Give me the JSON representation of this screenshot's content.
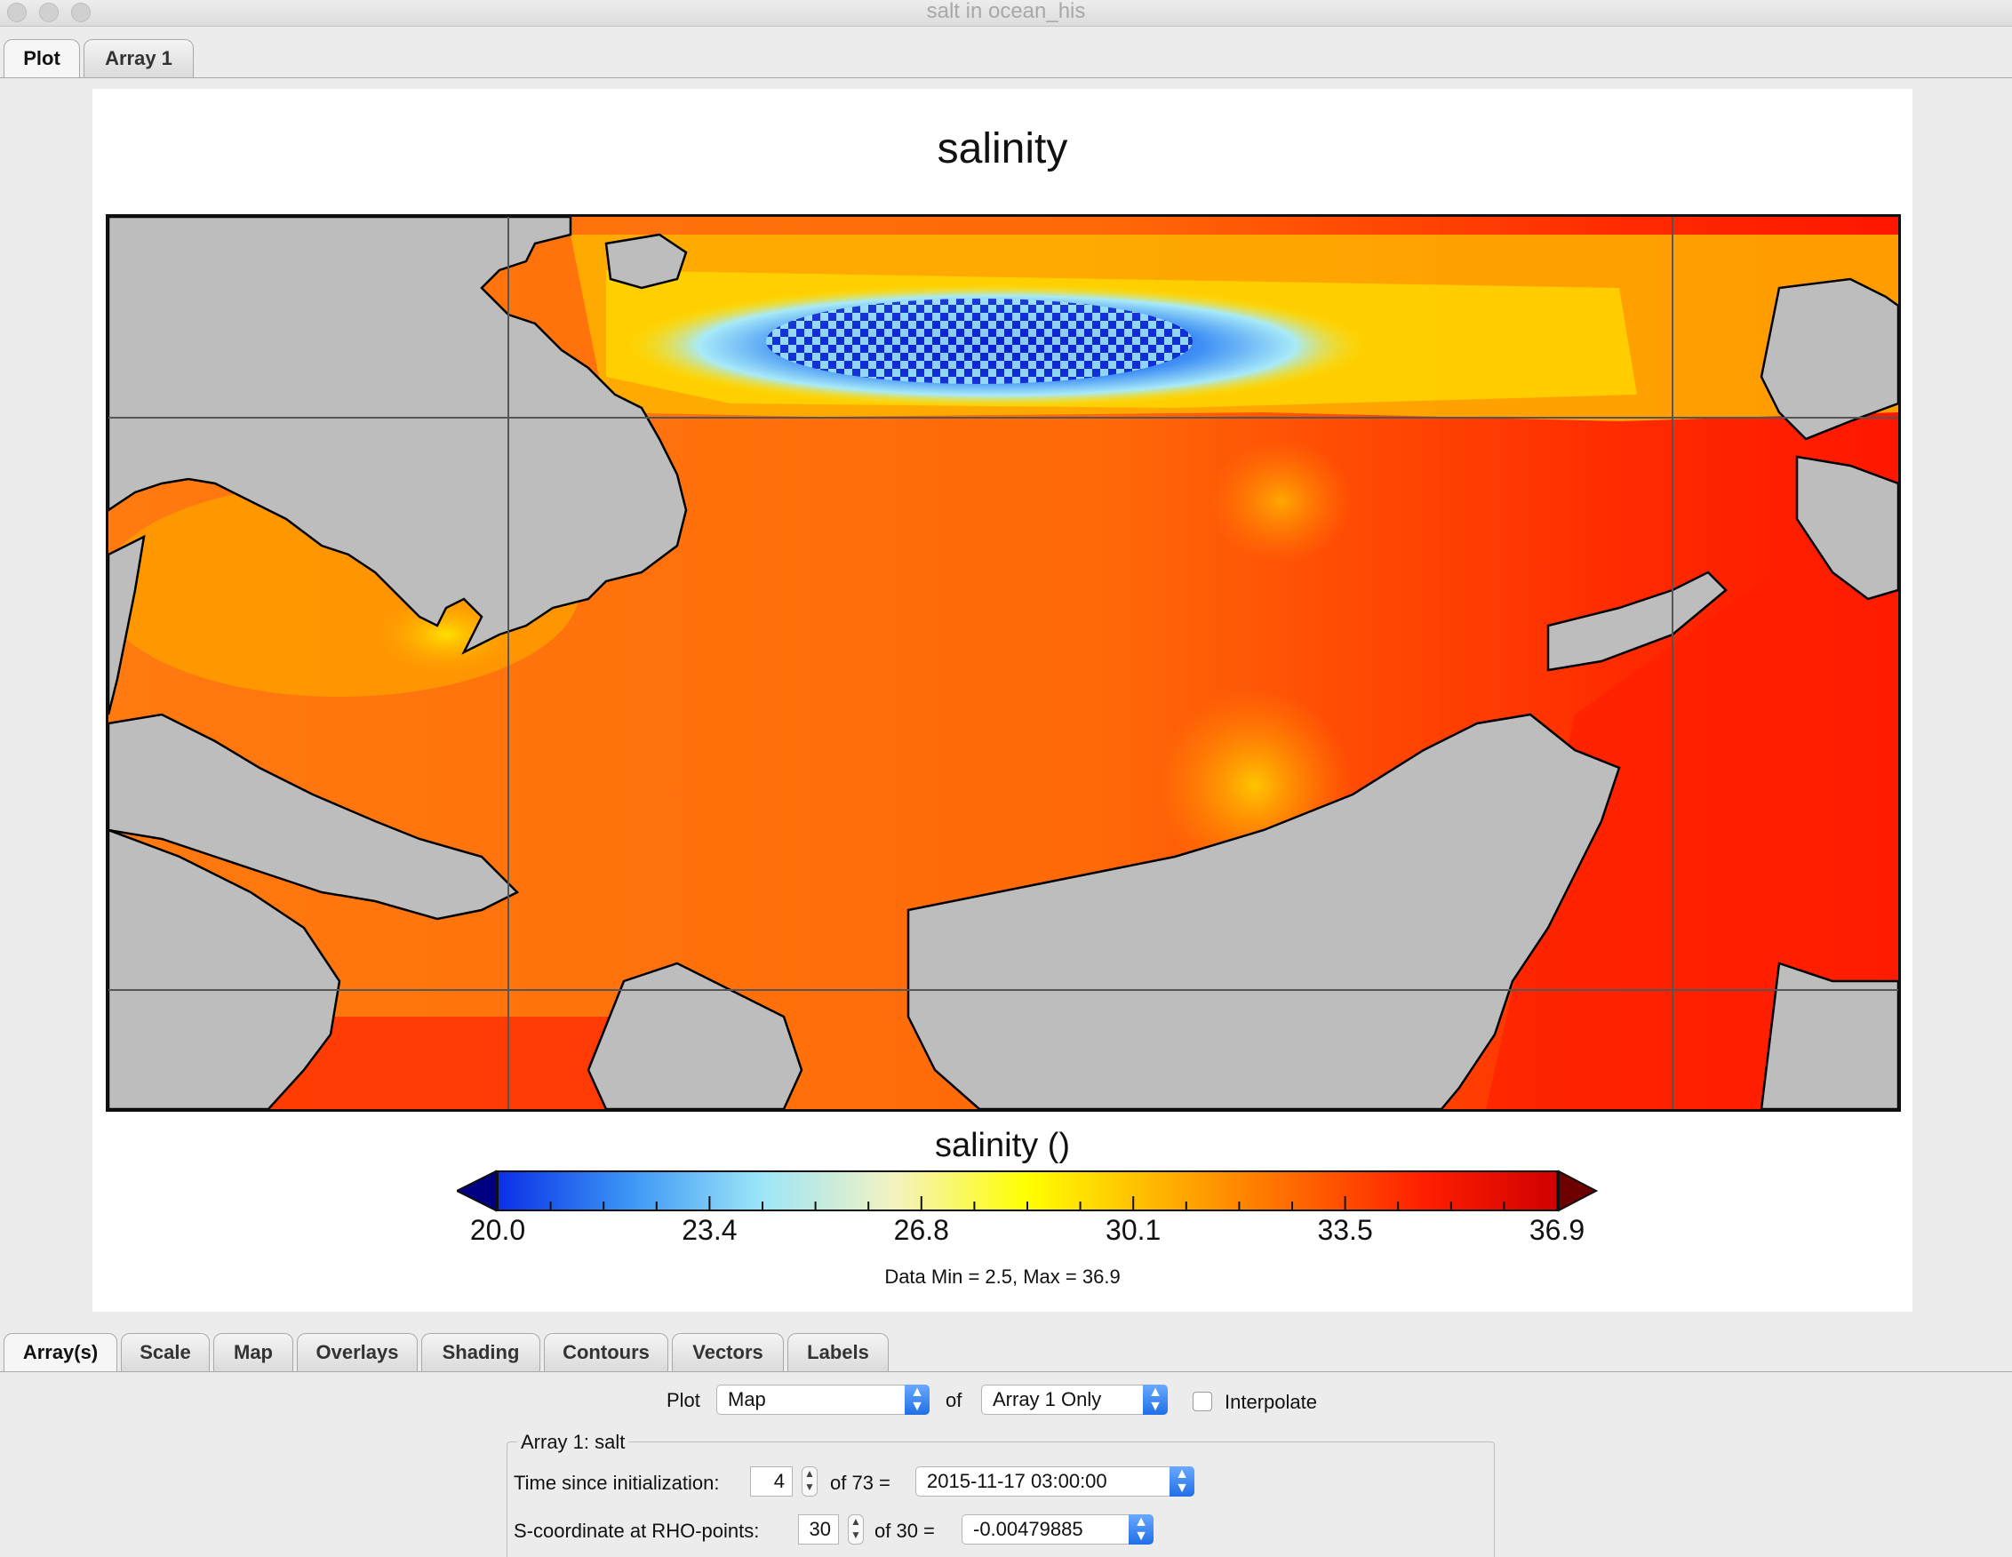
{
  "window": {
    "title": "salt in ocean_his"
  },
  "top_tabs": [
    {
      "label": "Plot",
      "active": true
    },
    {
      "label": "Array 1",
      "active": false
    }
  ],
  "plot": {
    "title": "salinity",
    "colorbar": {
      "title": "salinity ()",
      "tick_labels": [
        "20.0",
        "23.4",
        "26.8",
        "30.1",
        "33.5",
        "36.9"
      ],
      "range": [
        20.0,
        36.9
      ],
      "colors": [
        "#000080",
        "#0a2fe6",
        "#3c96f5",
        "#9de6f8",
        "#f4f2c0",
        "#ffff00",
        "#ffb400",
        "#ff6a00",
        "#ff1e00",
        "#d00000",
        "#6e0000"
      ]
    },
    "data_range_text": "Data Min = 2.5, Max = 36.9",
    "land_color": "#bdbdbd"
  },
  "bottom_tabs": [
    "Array(s)",
    "Scale",
    "Map",
    "Overlays",
    "Shading",
    "Contours",
    "Vectors",
    "Labels"
  ],
  "controls": {
    "plot_label": "Plot",
    "plot_type": "Map",
    "of_label": "of",
    "array_mode": "Array 1 Only",
    "interpolate_label": "Interpolate",
    "interpolate_checked": false,
    "group_title": "Array 1: salt",
    "time_label": "Time since initialization:",
    "time_index": "4",
    "time_of": "of 73 =",
    "time_value": "2015-11-17 03:00:00",
    "s_label": "S-coordinate at RHO-points:",
    "s_index": "30",
    "s_of": "of 30 =",
    "s_value": "-0.00479885"
  }
}
